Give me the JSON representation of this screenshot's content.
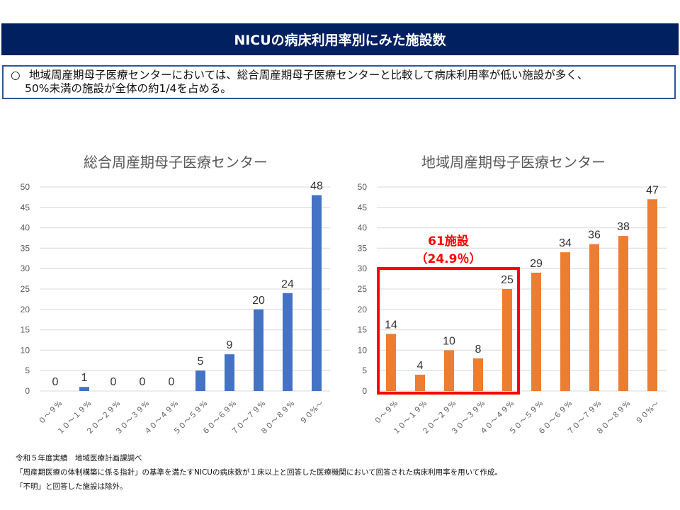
{
  "header": {
    "title": "NICUの病床利用率別にみた施設数"
  },
  "summary": {
    "bullet": "○",
    "line1": "地域周産期母子医療センターにおいては、総合周産期母子医療センターと比較して病床利用率が低い施設が多く、",
    "line2": "50%未満の施設が全体の約1/4を占める。"
  },
  "colors": {
    "header_bg": "#002060",
    "blue_bar": "#4472c4",
    "orange_bar": "#ed7d31",
    "highlight": "#ff0000",
    "grid": "#e0e0e0"
  },
  "chart_data": [
    {
      "type": "bar",
      "title": "総合周産期母子医療センター",
      "categories": [
        "0～9%",
        "10～19%",
        "20～29%",
        "30～39%",
        "40～49%",
        "50～59%",
        "60～69%",
        "70～79%",
        "80～89%",
        "90%～"
      ],
      "category_labels": [
        "０～９%",
        "１０～１９%",
        "２０～２９%",
        "３０～３９%",
        "４０～４９%",
        "５０～５９%",
        "６０～６９%",
        "７０～７９%",
        "８０～８９%",
        "９０%～"
      ],
      "values": [
        0,
        1,
        0,
        0,
        0,
        5,
        9,
        20,
        24,
        48
      ],
      "ylim": [
        0,
        50
      ],
      "yticks": [
        0,
        5,
        10,
        15,
        20,
        25,
        30,
        35,
        40,
        45,
        50
      ],
      "grid": true,
      "xlabel": "",
      "ylabel": "",
      "color": "#4472c4"
    },
    {
      "type": "bar",
      "title": "地域周産期母子医療センター",
      "categories": [
        "0～9%",
        "10～19%",
        "20～29%",
        "30～39%",
        "40～49%",
        "50～59%",
        "60～69%",
        "70～79%",
        "80～89%",
        "90%～"
      ],
      "category_labels": [
        "０～９%",
        "１０～１９%",
        "２０～２９%",
        "３０～３９%",
        "４０～４９%",
        "５０～５９%",
        "６０～６９%",
        "７０～７９%",
        "８０～８９%",
        "９０%～"
      ],
      "values": [
        14,
        4,
        10,
        8,
        25,
        29,
        34,
        36,
        38,
        47
      ],
      "ylim": [
        0,
        50
      ],
      "yticks": [
        0,
        5,
        10,
        15,
        20,
        25,
        30,
        35,
        40,
        45,
        50
      ],
      "grid": true,
      "xlabel": "",
      "ylabel": "",
      "color": "#ed7d31",
      "annotation": {
        "line1": "61施設",
        "line2": "（24.9％）",
        "highlighted_categories": [
          "0～9%",
          "10～19%",
          "20～29%",
          "30～39%",
          "40～49%"
        ]
      }
    }
  ],
  "footnotes": [
    "令和５年度実績　地域医療計画課調べ",
    "「周産期医療の体制構築に係る指針」の基準を満たすNICUの病床数が１床以上と回答した医療機関において回答された病床利用率を用いて作成。",
    "「不明」と回答した施設は除外。"
  ]
}
